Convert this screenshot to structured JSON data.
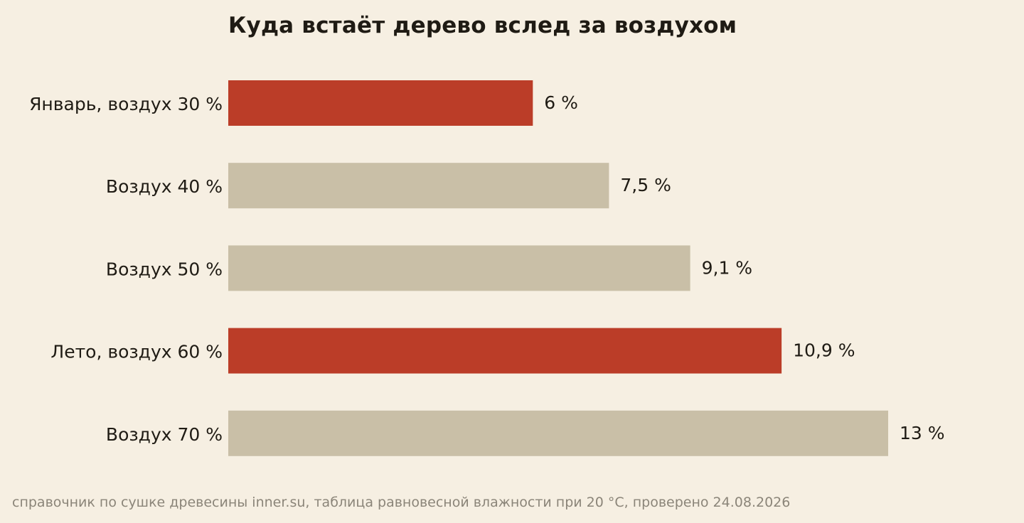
{
  "chart_data": {
    "type": "bar",
    "orientation": "horizontal",
    "title": "Куда встаёт дерево вслед за воздухом",
    "categories": [
      "Январь, воздух 30 %",
      "Воздух 40 %",
      "Воздух 50 %",
      "Лето, воздух 60 %",
      "Воздух 70 %"
    ],
    "values": [
      6,
      7.5,
      9.1,
      10.9,
      13
    ],
    "value_labels": [
      "6 %",
      "7,5 %",
      "9,1 %",
      "10,9 %",
      "13 %"
    ],
    "highlighted": [
      true,
      false,
      false,
      true,
      false
    ],
    "xlabel": "",
    "ylabel": "",
    "xlim": [
      0,
      13
    ],
    "grid": false,
    "legend": "none",
    "colors": {
      "highlight": "#bb3d28",
      "base": "#c9bfa7",
      "background": "#f6efe2",
      "text": "#1f1b14",
      "note": "#8b8579"
    }
  },
  "source_note": "справочник по сушке древесины inner.su, таблица равновесной влажности при 20 °C, проверено 24.08.2026"
}
